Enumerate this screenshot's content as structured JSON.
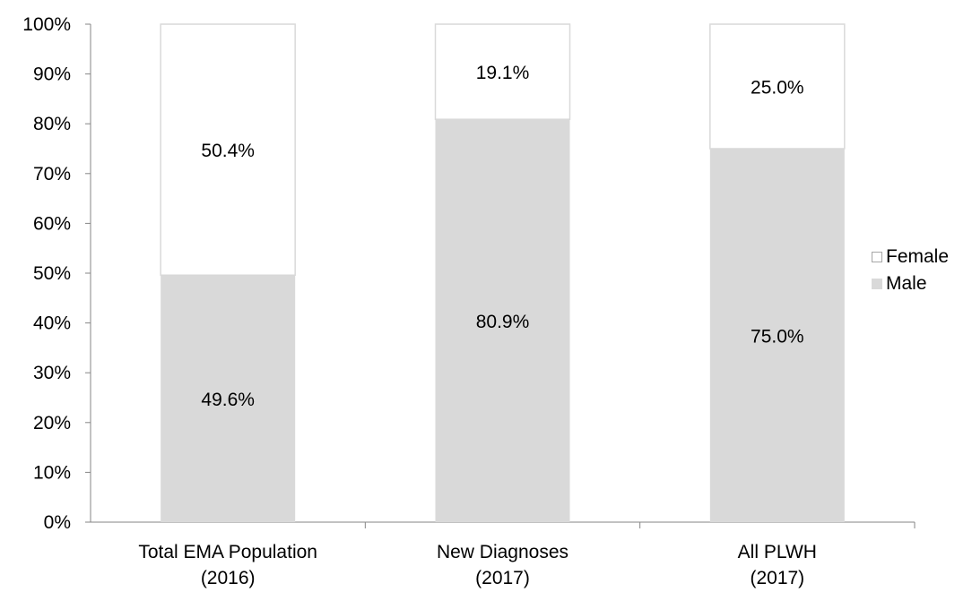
{
  "chart_data": {
    "type": "bar",
    "stacked": true,
    "categories": [
      [
        "Total EMA Population",
        "(2016)"
      ],
      [
        "New Diagnoses",
        "(2017)"
      ],
      [
        "All PLWH",
        "(2017)"
      ]
    ],
    "series": [
      {
        "name": "Male",
        "values": [
          49.6,
          80.9,
          75.0
        ],
        "labels": [
          "49.6%",
          "80.9%",
          "75.0%"
        ],
        "color": "#d9d9d9"
      },
      {
        "name": "Female",
        "values": [
          50.4,
          19.1,
          25.0
        ],
        "labels": [
          "50.4%",
          "19.1%",
          "25.0%"
        ],
        "color": "#ffffff"
      }
    ],
    "ylim": [
      0,
      100
    ],
    "yticks": [
      "0%",
      "10%",
      "20%",
      "30%",
      "40%",
      "50%",
      "60%",
      "70%",
      "80%",
      "90%",
      "100%"
    ],
    "grid": false,
    "legend_position": "right",
    "legend": [
      {
        "name": "Female",
        "color": "#ffffff",
        "border": "#a6a6a6"
      },
      {
        "name": "Male",
        "color": "#d9d9d9",
        "border": "#d9d9d9"
      }
    ]
  }
}
